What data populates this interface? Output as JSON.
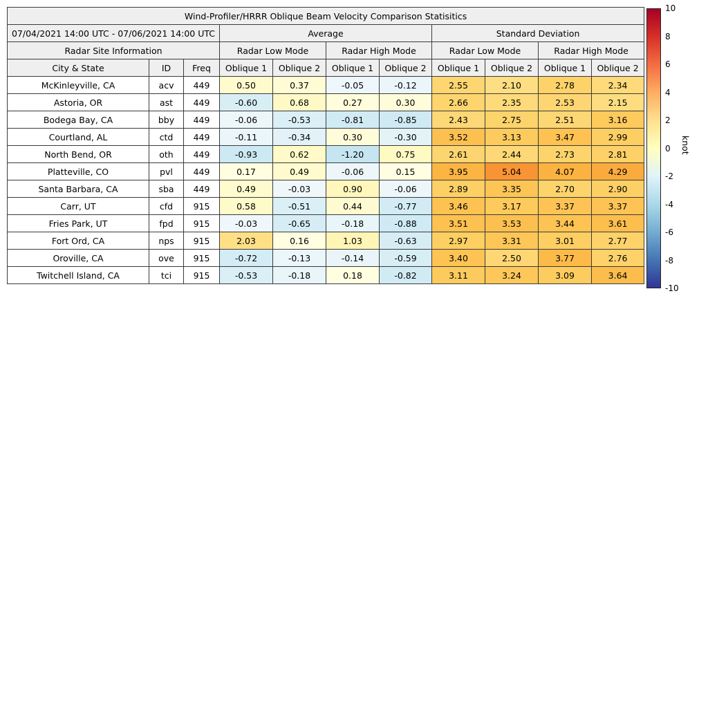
{
  "title": "Wind-Profiler/HRRR Oblique Beam Velocity Comparison Statisitics",
  "table": {
    "period": "07/04/2021 14:00 UTC - 07/06/2021 14:00 UTC",
    "group_headers": [
      "Average",
      "Standard Deviation"
    ],
    "site_info_header": "Radar Site Information",
    "mode_headers": [
      "Radar Low Mode",
      "Radar High Mode",
      "Radar Low Mode",
      "Radar High Mode"
    ],
    "column_headers": [
      "City & State",
      "ID",
      "Freq",
      "Oblique 1",
      "Oblique 2",
      "Oblique 1",
      "Oblique 2",
      "Oblique 1",
      "Oblique 2",
      "Oblique 1",
      "Oblique 2"
    ]
  },
  "colorbar": {
    "label": "knot",
    "min": -10,
    "max": 10,
    "ticks": [
      10,
      8,
      6,
      4,
      2,
      0,
      -2,
      -4,
      -6,
      -8,
      -10
    ],
    "gradient_stops": [
      "#a50026",
      "#d73027",
      "#f46d43",
      "#fdae61",
      "#fee090",
      "#ffffbf",
      "#e0f3f8",
      "#abd9e9",
      "#74add1",
      "#4575b4",
      "#313695"
    ]
  },
  "chart_data": {
    "type": "table",
    "title": "Wind-Profiler/HRRR Oblique Beam Velocity Comparison Statisitics",
    "value_unit": "knot",
    "color_range": [
      -10,
      10
    ],
    "colormap": "RdYlBu_r",
    "value_columns": [
      "Average Radar Low Mode Oblique 1",
      "Average Radar Low Mode Oblique 2",
      "Average Radar High Mode Oblique 1",
      "Average Radar High Mode Oblique 2",
      "Standard Deviation Radar Low Mode Oblique 1",
      "Standard Deviation Radar Low Mode Oblique 2",
      "Standard Deviation Radar High Mode Oblique 1",
      "Standard Deviation Radar High Mode Oblique 2"
    ],
    "rows": [
      {
        "city": "McKinleyville, CA",
        "id": "acv",
        "freq": "449",
        "values": [
          0.5,
          0.37,
          -0.05,
          -0.12,
          2.55,
          2.1,
          2.78,
          2.34
        ]
      },
      {
        "city": "Astoria, OR",
        "id": "ast",
        "freq": "449",
        "values": [
          -0.6,
          0.68,
          0.27,
          0.3,
          2.66,
          2.35,
          2.53,
          2.15
        ]
      },
      {
        "city": "Bodega Bay, CA",
        "id": "bby",
        "freq": "449",
        "values": [
          -0.06,
          -0.53,
          -0.81,
          -0.85,
          2.43,
          2.75,
          2.51,
          3.16
        ]
      },
      {
        "city": "Courtland, AL",
        "id": "ctd",
        "freq": "449",
        "values": [
          -0.11,
          -0.34,
          0.3,
          -0.3,
          3.52,
          3.13,
          3.47,
          2.99
        ]
      },
      {
        "city": "North Bend, OR",
        "id": "oth",
        "freq": "449",
        "values": [
          -0.93,
          0.62,
          -1.2,
          0.75,
          2.61,
          2.44,
          2.73,
          2.81
        ]
      },
      {
        "city": "Platteville, CO",
        "id": "pvl",
        "freq": "449",
        "values": [
          0.17,
          0.49,
          -0.06,
          0.15,
          3.95,
          5.04,
          4.07,
          4.29
        ]
      },
      {
        "city": "Santa Barbara, CA",
        "id": "sba",
        "freq": "449",
        "values": [
          0.49,
          -0.03,
          0.9,
          -0.06,
          2.89,
          3.35,
          2.7,
          2.9
        ]
      },
      {
        "city": "Carr, UT",
        "id": "cfd",
        "freq": "915",
        "values": [
          0.58,
          -0.51,
          0.44,
          -0.77,
          3.46,
          3.17,
          3.37,
          3.37
        ]
      },
      {
        "city": "Fries Park, UT",
        "id": "fpd",
        "freq": "915",
        "values": [
          -0.03,
          -0.65,
          -0.18,
          -0.88,
          3.51,
          3.53,
          3.44,
          3.61
        ]
      },
      {
        "city": "Fort Ord, CA",
        "id": "nps",
        "freq": "915",
        "values": [
          2.03,
          0.16,
          1.03,
          -0.63,
          2.97,
          3.31,
          3.01,
          2.77
        ]
      },
      {
        "city": "Oroville, CA",
        "id": "ove",
        "freq": "915",
        "values": [
          -0.72,
          -0.13,
          -0.14,
          -0.59,
          3.4,
          2.5,
          3.77,
          2.76
        ]
      },
      {
        "city": "Twitchell Island, CA",
        "id": "tci",
        "freq": "915",
        "values": [
          -0.53,
          -0.18,
          0.18,
          -0.82,
          3.11,
          3.24,
          3.09,
          3.64
        ]
      }
    ]
  }
}
